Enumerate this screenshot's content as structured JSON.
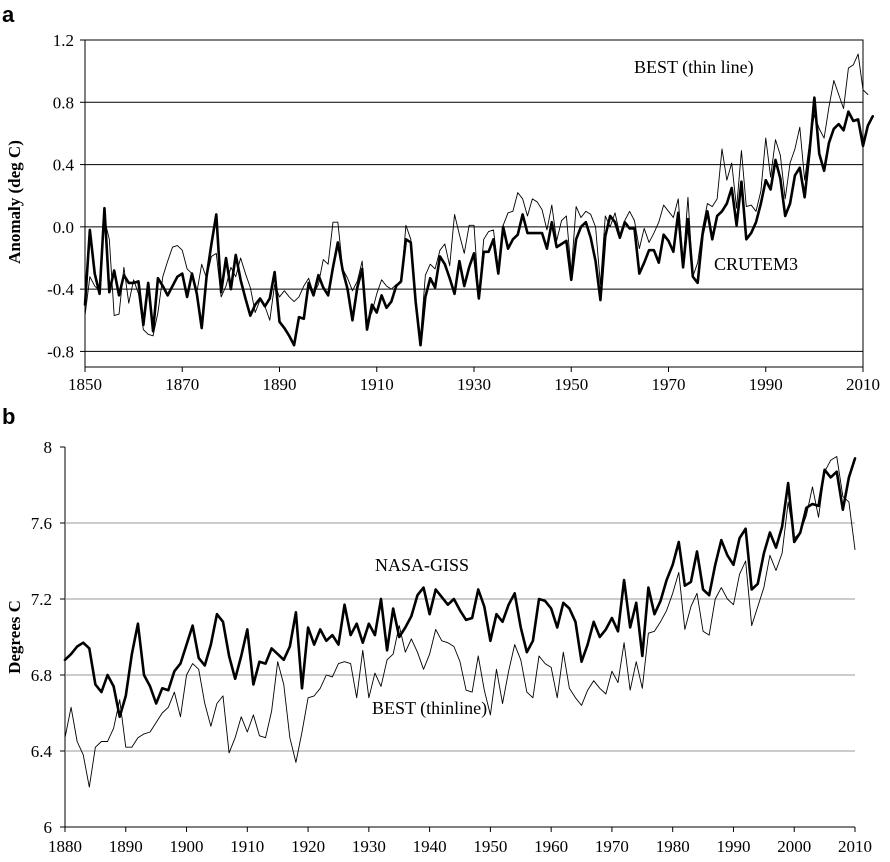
{
  "chart_data": [
    {
      "panel_label": "a",
      "type": "line",
      "ylabel": "Anomaly (deg C)",
      "xlim": [
        1850,
        2010
      ],
      "ylim": [
        -0.9,
        1.2
      ],
      "x_ticks": [
        "1850",
        "1870",
        "1890",
        "1910",
        "1930",
        "1950",
        "1970",
        "1990",
        "2010"
      ],
      "y_ticks": [
        "1.2",
        "0.8",
        "0.4",
        "0.0",
        "-0.4",
        "-0.8"
      ],
      "grid": "horizontal",
      "annotations": [
        "BEST (thin line)",
        "CRUTEM3"
      ],
      "series": [
        {
          "name": "CRUTEM3",
          "x_start": 1850,
          "values": [
            -0.5,
            -0.02,
            -0.3,
            -0.43,
            0.12,
            -0.42,
            -0.28,
            -0.44,
            -0.31,
            -0.36,
            -0.36,
            -0.35,
            -0.63,
            -0.36,
            -0.67,
            -0.33,
            -0.38,
            -0.44,
            -0.38,
            -0.32,
            -0.3,
            -0.45,
            -0.3,
            -0.43,
            -0.65,
            -0.32,
            -0.11,
            0.08,
            -0.42,
            -0.2,
            -0.4,
            -0.18,
            -0.34,
            -0.46,
            -0.57,
            -0.5,
            -0.46,
            -0.51,
            -0.46,
            -0.29,
            -0.61,
            -0.65,
            -0.7,
            -0.76,
            -0.58,
            -0.59,
            -0.36,
            -0.44,
            -0.31,
            -0.39,
            -0.44,
            -0.26,
            -0.1,
            -0.28,
            -0.4,
            -0.6,
            -0.39,
            -0.27,
            -0.66,
            -0.5,
            -0.55,
            -0.44,
            -0.52,
            -0.48,
            -0.38,
            -0.35,
            -0.08,
            -0.1,
            -0.48,
            -0.76,
            -0.45,
            -0.33,
            -0.39,
            -0.19,
            -0.24,
            -0.33,
            -0.43,
            -0.22,
            -0.38,
            -0.26,
            -0.17,
            -0.46,
            -0.16,
            -0.16,
            -0.08,
            -0.3,
            0.0,
            -0.14,
            -0.08,
            -0.05,
            0.08,
            -0.04,
            -0.04,
            -0.04,
            -0.04,
            -0.14,
            0.03,
            -0.13,
            -0.11,
            -0.09,
            -0.34,
            -0.08,
            0.0,
            0.03,
            -0.07,
            -0.22,
            -0.47,
            -0.06,
            0.07,
            0.03,
            -0.07,
            0.03,
            -0.01,
            -0.01,
            -0.3,
            -0.23,
            -0.15,
            -0.15,
            -0.23,
            -0.05,
            -0.09,
            -0.16,
            0.09,
            -0.26,
            0.05,
            -0.32,
            -0.36,
            -0.05,
            0.1,
            -0.08,
            0.07,
            0.1,
            0.15,
            0.25,
            0.01,
            0.29,
            -0.08,
            -0.04,
            0.03,
            0.15,
            0.3,
            0.24,
            0.43,
            0.31,
            0.07,
            0.15,
            0.33,
            0.38,
            0.19,
            0.48,
            0.83,
            0.47,
            0.36,
            0.54,
            0.63,
            0.66,
            0.62,
            0.74,
            0.68,
            0.69,
            0.52,
            0.65,
            0.71
          ]
        },
        {
          "name": "BEST",
          "x_start": 1850,
          "values": [
            -0.57,
            -0.32,
            -0.38,
            -0.41,
            0.05,
            -0.08,
            -0.57,
            -0.56,
            -0.26,
            -0.49,
            -0.34,
            -0.43,
            -0.66,
            -0.69,
            -0.7,
            -0.55,
            -0.32,
            -0.22,
            -0.13,
            -0.12,
            -0.15,
            -0.27,
            -0.3,
            -0.42,
            -0.24,
            -0.33,
            -0.19,
            -0.17,
            -0.45,
            -0.38,
            -0.26,
            -0.32,
            -0.2,
            -0.3,
            -0.39,
            -0.55,
            -0.47,
            -0.51,
            -0.6,
            -0.37,
            -0.45,
            -0.41,
            -0.45,
            -0.48,
            -0.45,
            -0.38,
            -0.33,
            -0.43,
            -0.37,
            -0.21,
            -0.24,
            0.03,
            0.03,
            -0.27,
            -0.33,
            -0.41,
            -0.35,
            -0.22,
            -0.61,
            -0.55,
            -0.43,
            -0.34,
            -0.38,
            -0.4,
            -0.37,
            -0.36,
            0.01,
            -0.08,
            -0.51,
            -0.71,
            -0.31,
            -0.24,
            -0.27,
            -0.15,
            -0.11,
            -0.25,
            0.08,
            -0.05,
            -0.17,
            0.01,
            0.01,
            -0.45,
            -0.08,
            -0.03,
            -0.02,
            -0.27,
            0.01,
            0.09,
            0.1,
            0.22,
            0.18,
            0.07,
            0.18,
            0.16,
            0.11,
            -0.02,
            0.14,
            -0.09,
            0.04,
            0.07,
            -0.29,
            0.13,
            0.06,
            0.1,
            0.08,
            0.0,
            -0.37,
            0.07,
            0.0,
            0.09,
            -0.05,
            0.04,
            0.1,
            0.04,
            -0.14,
            -0.01,
            -0.1,
            -0.04,
            0.03,
            0.14,
            0.1,
            0.06,
            0.18,
            -0.23,
            0.19,
            -0.32,
            -0.23,
            -0.01,
            0.15,
            0.13,
            0.18,
            0.5,
            0.3,
            0.41,
            0.12,
            0.49,
            0.13,
            0.14,
            0.1,
            0.23,
            0.57,
            0.32,
            0.56,
            0.46,
            0.18,
            0.41,
            0.5,
            0.64,
            0.3,
            0.54,
            0.72,
            0.63,
            0.57,
            0.77,
            0.94,
            0.85,
            0.76,
            1.02,
            1.04,
            1.11,
            0.88,
            0.85
          ]
        }
      ]
    },
    {
      "panel_label": "b",
      "type": "line",
      "ylabel": "Degrees C",
      "xlim": [
        1880,
        2010
      ],
      "ylim": [
        6,
        8
      ],
      "x_ticks": [
        "1880",
        "1890",
        "1900",
        "1910",
        "1920",
        "1930",
        "1940",
        "1950",
        "1960",
        "1970",
        "1980",
        "1990",
        "2000",
        "2010"
      ],
      "y_ticks": [
        "8",
        "7.6",
        "7.2",
        "6.8",
        "6.4",
        "6"
      ],
      "grid": "horizontal",
      "annotations": [
        "NASA-GISS",
        "BEST (thinline)"
      ],
      "series": [
        {
          "name": "NASA-GISS",
          "x_start": 1880,
          "values": [
            6.88,
            6.91,
            6.95,
            6.97,
            6.94,
            6.75,
            6.71,
            6.8,
            6.74,
            6.58,
            6.69,
            6.91,
            7.07,
            6.8,
            6.74,
            6.65,
            6.73,
            6.72,
            6.82,
            6.86,
            6.96,
            7.06,
            6.89,
            6.85,
            6.96,
            7.12,
            7.08,
            6.9,
            6.78,
            6.9,
            7.04,
            6.75,
            6.87,
            6.86,
            6.94,
            6.91,
            6.88,
            6.95,
            7.13,
            6.73,
            7.05,
            6.96,
            7.04,
            6.98,
            7.01,
            6.96,
            7.17,
            7.01,
            7.07,
            6.97,
            7.07,
            7.01,
            7.2,
            6.93,
            7.15,
            7.0,
            7.05,
            7.11,
            7.22,
            7.26,
            7.12,
            7.25,
            7.21,
            7.17,
            7.2,
            7.14,
            7.09,
            7.1,
            7.25,
            7.16,
            6.98,
            7.12,
            7.08,
            7.17,
            7.23,
            7.05,
            6.92,
            6.98,
            7.2,
            7.19,
            7.15,
            7.05,
            7.18,
            7.15,
            7.08,
            6.87,
            6.96,
            7.08,
            7.0,
            7.04,
            7.1,
            7.03,
            7.3,
            7.05,
            7.18,
            6.9,
            7.26,
            7.12,
            7.19,
            7.3,
            7.38,
            7.5,
            7.27,
            7.29,
            7.45,
            7.25,
            7.22,
            7.38,
            7.51,
            7.43,
            7.38,
            7.52,
            7.57,
            7.25,
            7.28,
            7.44,
            7.55,
            7.47,
            7.58,
            7.81,
            7.5,
            7.55,
            7.68,
            7.7,
            7.69,
            7.88,
            7.84,
            7.87,
            7.67,
            7.84,
            7.94
          ]
        },
        {
          "name": "BEST",
          "x_start": 1880,
          "values": [
            6.47,
            6.63,
            6.45,
            6.38,
            6.21,
            6.42,
            6.45,
            6.45,
            6.52,
            6.67,
            6.42,
            6.42,
            6.47,
            6.49,
            6.5,
            6.55,
            6.6,
            6.63,
            6.71,
            6.58,
            6.8,
            6.86,
            6.83,
            6.65,
            6.53,
            6.65,
            6.69,
            6.39,
            6.47,
            6.58,
            6.5,
            6.59,
            6.48,
            6.47,
            6.61,
            6.87,
            6.75,
            6.47,
            6.34,
            6.5,
            6.68,
            6.69,
            6.73,
            6.8,
            6.79,
            6.86,
            6.87,
            6.86,
            6.68,
            6.93,
            6.68,
            6.81,
            6.74,
            6.88,
            6.91,
            7.06,
            6.92,
            6.99,
            6.92,
            6.83,
            6.91,
            7.04,
            6.98,
            6.97,
            6.95,
            6.87,
            6.72,
            6.71,
            6.9,
            6.72,
            6.59,
            6.83,
            6.65,
            6.82,
            6.96,
            6.88,
            6.71,
            6.68,
            6.9,
            6.86,
            6.84,
            6.68,
            6.92,
            6.73,
            6.68,
            6.64,
            6.72,
            6.77,
            6.73,
            6.7,
            6.82,
            6.76,
            6.97,
            6.72,
            6.87,
            6.73,
            7.02,
            7.03,
            7.08,
            7.14,
            7.23,
            7.34,
            7.04,
            7.16,
            7.23,
            7.03,
            7.01,
            7.2,
            7.26,
            7.2,
            7.17,
            7.33,
            7.4,
            7.06,
            7.16,
            7.26,
            7.43,
            7.35,
            7.44,
            7.71,
            7.52,
            7.55,
            7.64,
            7.79,
            7.63,
            7.87,
            7.93,
            7.95,
            7.74,
            7.71,
            7.46
          ]
        }
      ]
    }
  ]
}
